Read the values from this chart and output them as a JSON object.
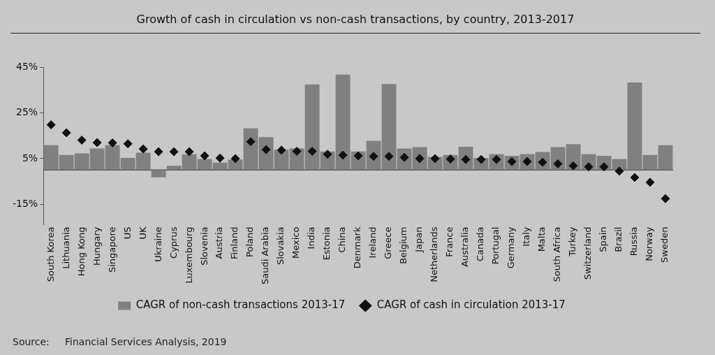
{
  "chart_data": {
    "type": "bar",
    "title": "Growth of cash in circulation vs non-cash transactions, by country, 2013-2017",
    "categories": [
      "South Korea",
      "Lithuania",
      "Hong Kong",
      "Hungary",
      "Singapore",
      "US",
      "UK",
      "Ukraine",
      "Cyprus",
      "Luxembourg",
      "Slovenia",
      "Austria",
      "Finland",
      "Poland",
      "Saudi Arabia",
      "Slovakia",
      "Mexico",
      "India",
      "Estonia",
      "China",
      "Denmark",
      "Ireland",
      "Greece",
      "Belgium",
      "Japan",
      "Netherlands",
      "France",
      "Australia",
      "Canada",
      "Portugal",
      "Germany",
      "Italy",
      "Malta",
      "South Africa",
      "Turkey",
      "Switzerland",
      "Spain",
      "Brazil",
      "Russia",
      "Norway",
      "Sweden"
    ],
    "series": [
      {
        "name": "CAGR of non-cash transactions 2013-17",
        "color": "#808080",
        "values": [
          10.9,
          6.6,
          7.3,
          9.4,
          10.9,
          5.3,
          7.6,
          -3.2,
          1.8,
          6.9,
          4.8,
          3.2,
          4.6,
          18.3,
          14.4,
          8.9,
          9.5,
          37.5,
          8.1,
          41.8,
          8.1,
          12.8,
          37.7,
          9.4,
          10.0,
          5.7,
          6.6,
          10.2,
          5.3,
          7.0,
          6.2,
          7.0,
          7.9,
          10.0,
          11.3,
          7.0,
          6.2,
          4.8,
          38.4,
          6.6,
          10.9
        ]
      },
      {
        "name": "CAGR of cash in circulation 2013-17",
        "type": "scatter",
        "color": "#111111",
        "marker": "diamond",
        "values": [
          19.8,
          16.3,
          13.1,
          12.0,
          11.9,
          11.5,
          9.2,
          8.0,
          8.0,
          8.0,
          6.2,
          5.2,
          5.0,
          12.4,
          8.9,
          8.7,
          8.2,
          8.2,
          6.9,
          6.5,
          6.2,
          6.0,
          6.0,
          5.5,
          5.0,
          5.0,
          4.8,
          4.6,
          4.6,
          4.6,
          3.7,
          3.7,
          3.4,
          2.7,
          1.8,
          1.4,
          1.4,
          -0.5,
          -3.3,
          -5.4,
          -12.6
        ]
      }
    ],
    "ylim": [
      -24,
      45
    ],
    "yticks": [
      {
        "value": 45,
        "label": "45%"
      },
      {
        "value": 25,
        "label": "25%"
      },
      {
        "value": 5,
        "label": "5%"
      },
      {
        "value": -15,
        "label": "-15%"
      }
    ],
    "grid": false,
    "legend": "bottom",
    "annotations": [
      "Source:     Financial Services Analysis, 2019"
    ]
  }
}
